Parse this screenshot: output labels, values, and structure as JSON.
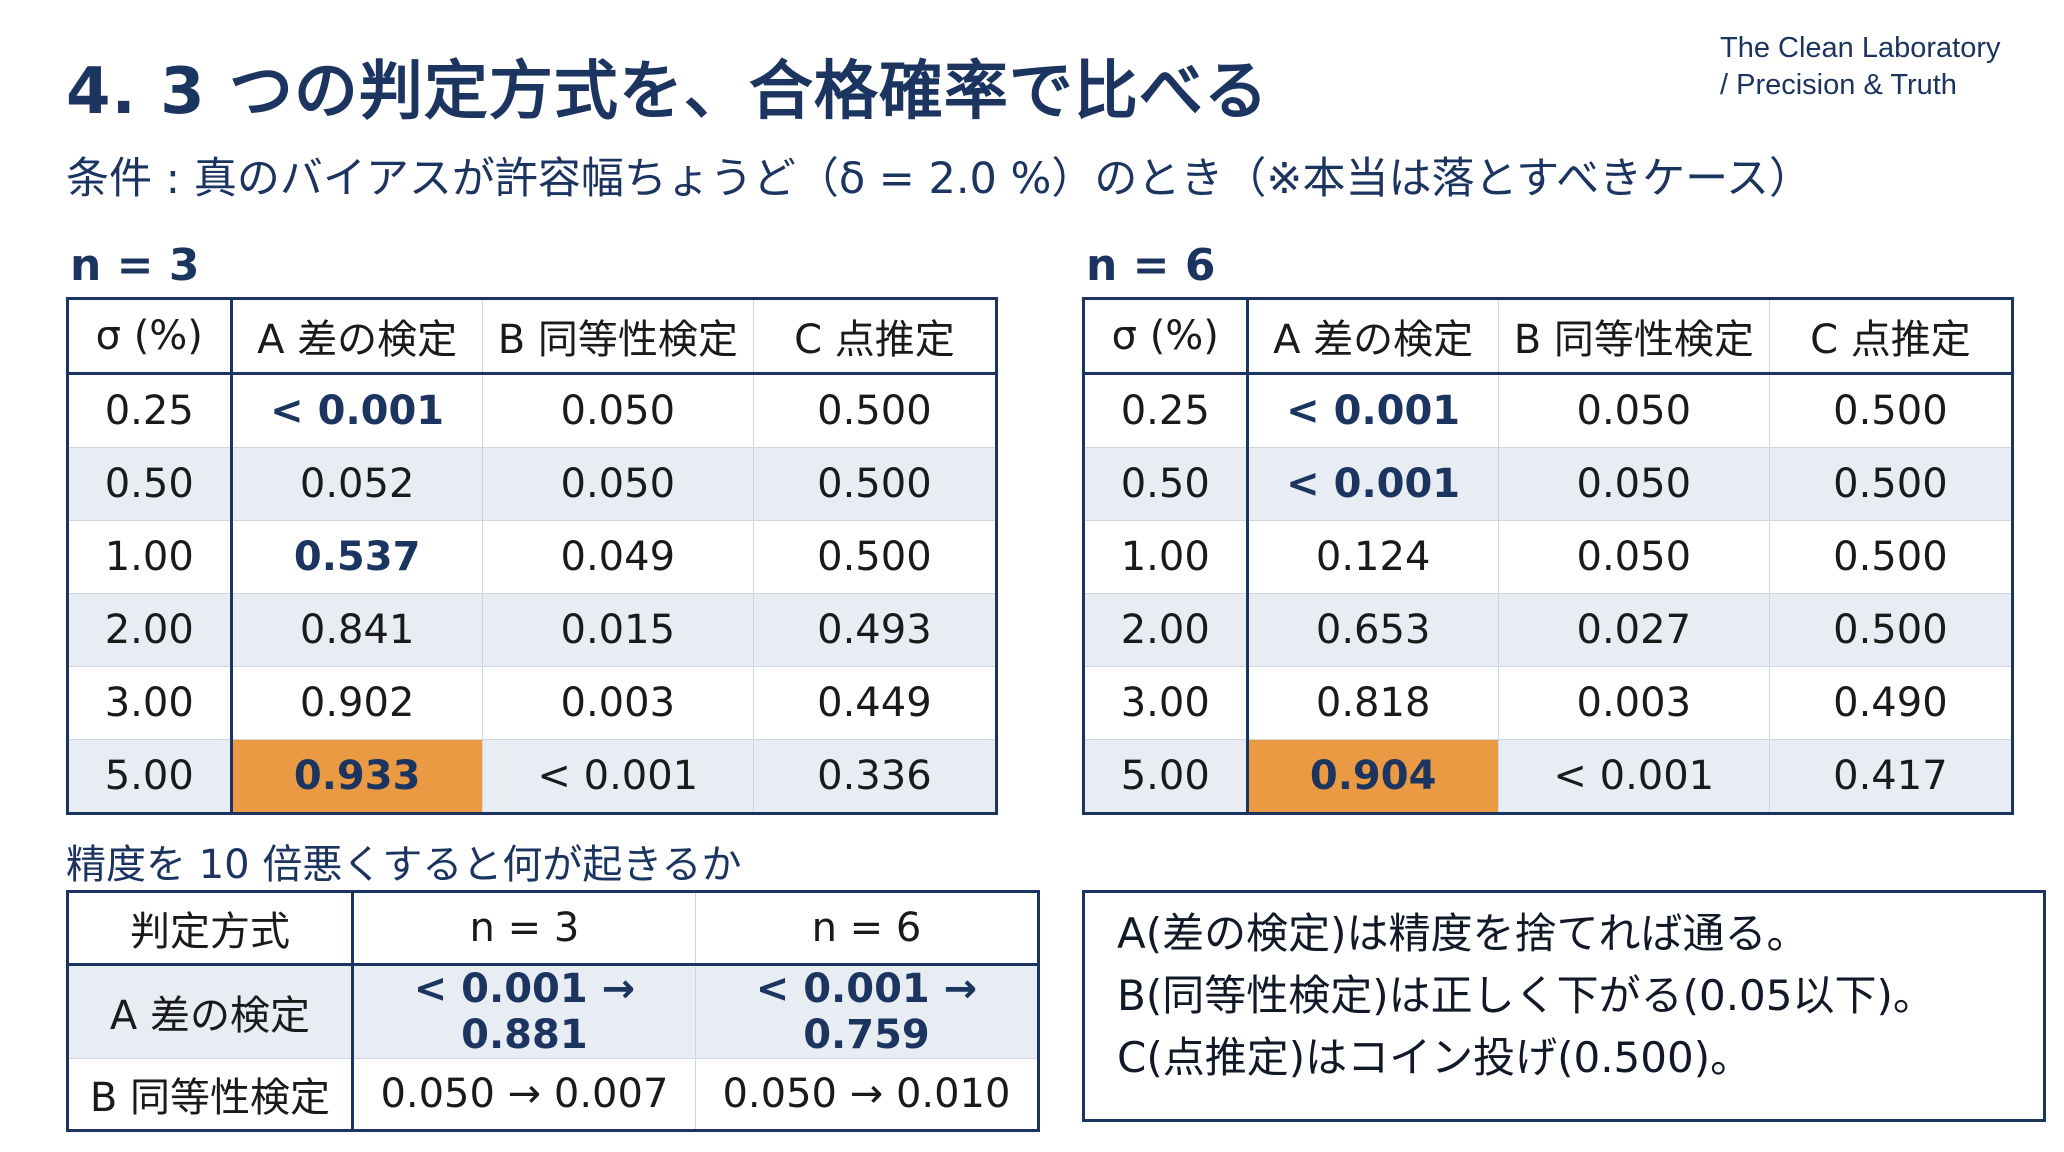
{
  "header": {
    "title": "4. 3 つの判定方式を、合格確率で比べる",
    "brand_line1": "The Clean Laboratory",
    "brand_line2": "/ Precision & Truth",
    "subtitle": "条件 : 真のバイアスが許容幅ちょうど（δ = 2.0 %）のとき（※本当は落とすべきケース）"
  },
  "colors": {
    "navy": "#1c3460",
    "highlight": "#eb9a44",
    "row_alt": "#e8ecf3"
  },
  "table_n3": {
    "label": "n = 3",
    "headers": [
      "σ (%)",
      "A 差の検定",
      "B 同等性検定",
      "C 点推定"
    ],
    "rows": [
      [
        "0.25",
        "< 0.001",
        "0.050",
        "0.500"
      ],
      [
        "0.50",
        "0.052",
        "0.050",
        "0.500"
      ],
      [
        "1.00",
        "0.537",
        "0.049",
        "0.500"
      ],
      [
        "2.00",
        "0.841",
        "0.015",
        "0.493"
      ],
      [
        "3.00",
        "0.902",
        "0.003",
        "0.449"
      ],
      [
        "5.00",
        "0.933",
        "< 0.001",
        "0.336"
      ]
    ]
  },
  "table_n6": {
    "label": "n = 6",
    "headers": [
      "σ (%)",
      "A 差の検定",
      "B 同等性検定",
      "C 点推定"
    ],
    "rows": [
      [
        "0.25",
        "< 0.001",
        "0.050",
        "0.500"
      ],
      [
        "0.50",
        "< 0.001",
        "0.050",
        "0.500"
      ],
      [
        "1.00",
        "0.124",
        "0.050",
        "0.500"
      ],
      [
        "2.00",
        "0.653",
        "0.027",
        "0.500"
      ],
      [
        "3.00",
        "0.818",
        "0.003",
        "0.490"
      ],
      [
        "5.00",
        "0.904",
        "< 0.001",
        "0.417"
      ]
    ]
  },
  "comparison": {
    "heading": "精度を 10 倍悪くすると何が起きるか",
    "headers": [
      "判定方式",
      "n = 3",
      "n = 6"
    ],
    "rows": [
      [
        "A 差の検定",
        "< 0.001 → 0.881",
        "< 0.001 → 0.759"
      ],
      [
        "B 同等性検定",
        "0.050 → 0.007",
        "0.050 → 0.010"
      ]
    ]
  },
  "notes": [
    "A(差の検定)は精度を捨てれば通る。",
    "B(同等性検定)は正しく下がる(0.05以下)。",
    "C(点推定)はコイン投げ(0.500)。"
  ]
}
